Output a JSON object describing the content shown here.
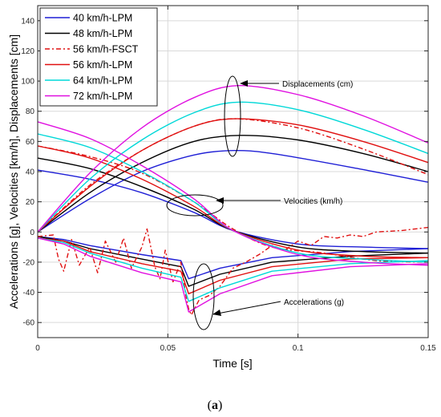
{
  "chart_data": {
    "type": "line",
    "title": "",
    "xlabel": "Time [s]",
    "ylabel": "Accelerations [g], Velocities [km/h], Displacements [cm]",
    "xlim": [
      0,
      0.15
    ],
    "ylim": [
      -70,
      150
    ],
    "xticks": [
      0,
      0.05,
      0.1,
      0.15
    ],
    "xtick_labels": [
      "0",
      "0.05",
      "0.1",
      "0.15"
    ],
    "yticks": [
      -60,
      -40,
      -20,
      0,
      20,
      40,
      60,
      80,
      100,
      120,
      140
    ],
    "ytick_labels": [
      "-60",
      "-40",
      "-20",
      "0",
      "20",
      "40",
      "60",
      "80",
      "100",
      "120",
      "140"
    ],
    "grid": true,
    "legend_position": "top-left",
    "caption": "(a)",
    "annotations": [
      {
        "text": "Displacements (cm)"
      },
      {
        "text": "Velocities (km/h)"
      },
      {
        "text": "Accelerations (g)"
      }
    ],
    "series": [
      {
        "name": "40 km/h-LPM",
        "color": "#1f1fd6",
        "dash": "solid",
        "displacement": [
          [
            0,
            0
          ],
          [
            0.02,
            22
          ],
          [
            0.04,
            40
          ],
          [
            0.06,
            51
          ],
          [
            0.075,
            54
          ],
          [
            0.09,
            52
          ],
          [
            0.12,
            43
          ],
          [
            0.15,
            33
          ]
        ],
        "velocity": [
          [
            0,
            41
          ],
          [
            0.02,
            35
          ],
          [
            0.04,
            26
          ],
          [
            0.06,
            13
          ],
          [
            0.075,
            1
          ],
          [
            0.1,
            -8
          ],
          [
            0.125,
            -10
          ],
          [
            0.15,
            -11
          ]
        ],
        "acceleration": [
          [
            0,
            -3
          ],
          [
            0.01,
            -5
          ],
          [
            0.02,
            -9
          ],
          [
            0.04,
            -15
          ],
          [
            0.055,
            -19
          ],
          [
            0.058,
            -31
          ],
          [
            0.07,
            -24
          ],
          [
            0.09,
            -17
          ],
          [
            0.12,
            -13
          ],
          [
            0.15,
            -11
          ]
        ]
      },
      {
        "name": "48 km/h-LPM",
        "color": "#000000",
        "dash": "solid",
        "displacement": [
          [
            0,
            0
          ],
          [
            0.02,
            26
          ],
          [
            0.04,
            46
          ],
          [
            0.06,
            60
          ],
          [
            0.078,
            64
          ],
          [
            0.1,
            61
          ],
          [
            0.125,
            52
          ],
          [
            0.15,
            40
          ]
        ],
        "velocity": [
          [
            0,
            49
          ],
          [
            0.02,
            42
          ],
          [
            0.04,
            30
          ],
          [
            0.06,
            15
          ],
          [
            0.075,
            1
          ],
          [
            0.1,
            -10
          ],
          [
            0.125,
            -13
          ],
          [
            0.15,
            -14
          ]
        ],
        "acceleration": [
          [
            0,
            -3
          ],
          [
            0.01,
            -6
          ],
          [
            0.02,
            -11
          ],
          [
            0.04,
            -18
          ],
          [
            0.055,
            -23
          ],
          [
            0.058,
            -36
          ],
          [
            0.07,
            -28
          ],
          [
            0.09,
            -20
          ],
          [
            0.12,
            -16
          ],
          [
            0.15,
            -14
          ]
        ]
      },
      {
        "name": "56 km/h-FSCT",
        "color": "#e01010",
        "dash": "6,3,2,3",
        "displacement": [
          [
            0,
            0
          ],
          [
            0.02,
            31
          ],
          [
            0.04,
            54
          ],
          [
            0.06,
            70
          ],
          [
            0.076,
            75
          ],
          [
            0.1,
            69
          ],
          [
            0.125,
            55
          ],
          [
            0.15,
            38
          ]
        ],
        "velocity": [
          [
            0,
            57
          ],
          [
            0.02,
            50
          ],
          [
            0.04,
            39
          ],
          [
            0.06,
            20
          ],
          [
            0.075,
            2
          ],
          [
            0.09,
            -10
          ],
          [
            0.11,
            -14
          ],
          [
            0.13,
            -19
          ],
          [
            0.15,
            -20
          ]
        ],
        "acceleration": [
          [
            0,
            -3
          ],
          [
            0.006,
            -2
          ],
          [
            0.008,
            -18
          ],
          [
            0.01,
            -26
          ],
          [
            0.013,
            -5
          ],
          [
            0.016,
            -22
          ],
          [
            0.02,
            -10
          ],
          [
            0.023,
            -27
          ],
          [
            0.026,
            -6
          ],
          [
            0.03,
            -20
          ],
          [
            0.033,
            -4
          ],
          [
            0.036,
            -24
          ],
          [
            0.04,
            -10
          ],
          [
            0.042,
            2
          ],
          [
            0.045,
            -23
          ],
          [
            0.047,
            -31
          ],
          [
            0.049,
            -12
          ],
          [
            0.052,
            -33
          ],
          [
            0.055,
            -20
          ],
          [
            0.057,
            -43
          ],
          [
            0.058,
            -51
          ],
          [
            0.059,
            -55
          ],
          [
            0.062,
            -45
          ],
          [
            0.066,
            -42
          ],
          [
            0.07,
            -36
          ],
          [
            0.075,
            -24
          ],
          [
            0.08,
            -20
          ],
          [
            0.085,
            -15
          ],
          [
            0.09,
            -9
          ],
          [
            0.095,
            -12
          ],
          [
            0.1,
            -6
          ],
          [
            0.105,
            -9
          ],
          [
            0.11,
            -3
          ],
          [
            0.115,
            -4
          ],
          [
            0.12,
            -2
          ],
          [
            0.125,
            -3
          ],
          [
            0.13,
            0
          ],
          [
            0.14,
            1
          ],
          [
            0.15,
            3
          ]
        ]
      },
      {
        "name": "56 km/h-LPM",
        "color": "#e01010",
        "dash": "solid",
        "displacement": [
          [
            0,
            0
          ],
          [
            0.02,
            30
          ],
          [
            0.04,
            54
          ],
          [
            0.06,
            70
          ],
          [
            0.076,
            75
          ],
          [
            0.1,
            71
          ],
          [
            0.125,
            60
          ],
          [
            0.15,
            46
          ]
        ],
        "velocity": [
          [
            0,
            57
          ],
          [
            0.02,
            49
          ],
          [
            0.04,
            35
          ],
          [
            0.06,
            17
          ],
          [
            0.075,
            1
          ],
          [
            0.1,
            -12
          ],
          [
            0.125,
            -16
          ],
          [
            0.15,
            -17
          ]
        ],
        "acceleration": [
          [
            0,
            -4
          ],
          [
            0.01,
            -6
          ],
          [
            0.02,
            -13
          ],
          [
            0.04,
            -21
          ],
          [
            0.055,
            -26
          ],
          [
            0.058,
            -41
          ],
          [
            0.07,
            -32
          ],
          [
            0.09,
            -23
          ],
          [
            0.12,
            -18
          ],
          [
            0.15,
            -17
          ]
        ]
      },
      {
        "name": "64 km/h-LPM",
        "color": "#00d8d8",
        "dash": "solid",
        "displacement": [
          [
            0,
            0
          ],
          [
            0.02,
            35
          ],
          [
            0.04,
            61
          ],
          [
            0.06,
            79
          ],
          [
            0.077,
            86
          ],
          [
            0.1,
            81
          ],
          [
            0.125,
            68
          ],
          [
            0.15,
            52
          ]
        ],
        "velocity": [
          [
            0,
            65
          ],
          [
            0.02,
            56
          ],
          [
            0.04,
            40
          ],
          [
            0.06,
            20
          ],
          [
            0.075,
            1
          ],
          [
            0.1,
            -14
          ],
          [
            0.125,
            -18
          ],
          [
            0.15,
            -20
          ]
        ],
        "acceleration": [
          [
            0,
            -4
          ],
          [
            0.01,
            -7
          ],
          [
            0.02,
            -14
          ],
          [
            0.04,
            -24
          ],
          [
            0.055,
            -30
          ],
          [
            0.058,
            -46
          ],
          [
            0.07,
            -37
          ],
          [
            0.09,
            -26
          ],
          [
            0.12,
            -21
          ],
          [
            0.15,
            -19
          ]
        ]
      },
      {
        "name": "72 km/h-LPM",
        "color": "#e010e0",
        "dash": "solid",
        "displacement": [
          [
            0,
            0
          ],
          [
            0.02,
            39
          ],
          [
            0.04,
            69
          ],
          [
            0.06,
            89
          ],
          [
            0.077,
            97
          ],
          [
            0.1,
            91
          ],
          [
            0.125,
            77
          ],
          [
            0.15,
            59
          ]
        ],
        "velocity": [
          [
            0,
            73
          ],
          [
            0.02,
            62
          ],
          [
            0.04,
            44
          ],
          [
            0.06,
            22
          ],
          [
            0.075,
            1
          ],
          [
            0.1,
            -15
          ],
          [
            0.125,
            -20
          ],
          [
            0.15,
            -22
          ]
        ],
        "acceleration": [
          [
            0,
            -4
          ],
          [
            0.01,
            -8
          ],
          [
            0.02,
            -16
          ],
          [
            0.04,
            -27
          ],
          [
            0.055,
            -33
          ],
          [
            0.058,
            -53
          ],
          [
            0.07,
            -41
          ],
          [
            0.09,
            -29
          ],
          [
            0.12,
            -23
          ],
          [
            0.15,
            -21
          ]
        ]
      }
    ]
  }
}
